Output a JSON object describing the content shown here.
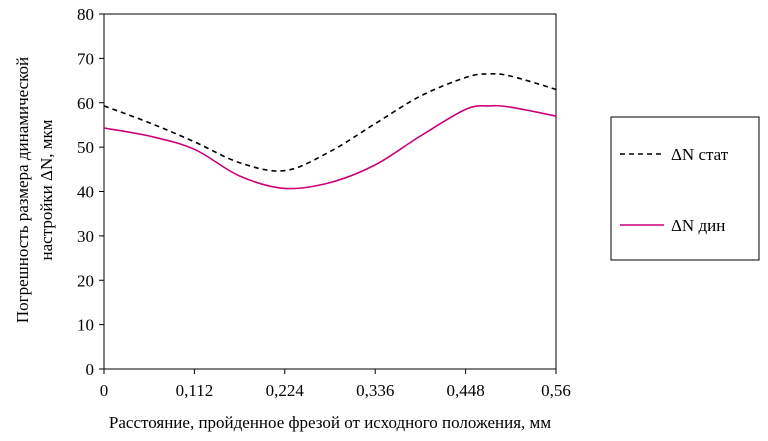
{
  "chart_data": {
    "type": "line",
    "title": "",
    "xlabel": "Расстояние, пройденное фрезой от исходного положения, мм",
    "ylabel_lines": [
      "Погрешность размера динамической",
      "настройки ΔN, мкм"
    ],
    "x_tick_labels": [
      "0",
      "0,112",
      "0,224",
      "0,336",
      "0,448",
      "0,56"
    ],
    "y_tick_labels": [
      "0",
      "10",
      "20",
      "30",
      "40",
      "50",
      "60",
      "70",
      "80"
    ],
    "xlim": [
      0,
      0.56
    ],
    "ylim": [
      0,
      80
    ],
    "grid": false,
    "legend_position": "right",
    "series": [
      {
        "name": "ΔN стат",
        "style": "dashed",
        "color": "#000000",
        "x": [
          0,
          0.056,
          0.112,
          0.168,
          0.224,
          0.28,
          0.336,
          0.392,
          0.448,
          0.476,
          0.504,
          0.56
        ],
        "y": [
          59.3,
          55.5,
          51.2,
          46.5,
          44.7,
          49.0,
          55.3,
          61.5,
          65.7,
          66.5,
          66.0,
          63.0
        ]
      },
      {
        "name": "ΔN дин",
        "style": "solid",
        "color": "#cc0077",
        "x": [
          0,
          0.056,
          0.112,
          0.168,
          0.224,
          0.28,
          0.336,
          0.392,
          0.448,
          0.476,
          0.504,
          0.56
        ],
        "y": [
          54.3,
          52.5,
          49.5,
          43.5,
          40.7,
          42.0,
          46.0,
          52.5,
          58.5,
          59.3,
          59.0,
          57.0
        ]
      }
    ]
  }
}
